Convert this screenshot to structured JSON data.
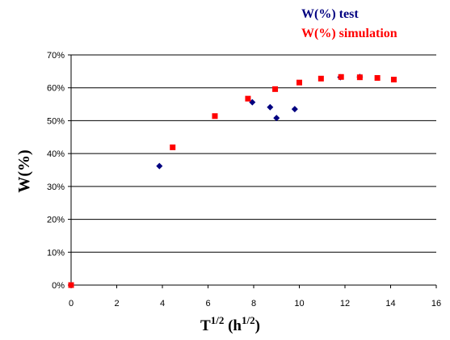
{
  "chart_data": {
    "type": "scatter",
    "xlabel": {
      "base": "T",
      "base_sup": "1/2",
      "unit_open": " (h",
      "unit_sup": "1/2",
      "unit_close": ")"
    },
    "ylabel": "W(%)",
    "xlim": [
      0,
      16
    ],
    "ylim": [
      0,
      70
    ],
    "x_ticks": [
      "0",
      "2",
      "4",
      "6",
      "8",
      "10",
      "12",
      "14",
      "16"
    ],
    "y_ticks": [
      "0%",
      "10%",
      "20%",
      "30%",
      "40%",
      "50%",
      "60%",
      "70%"
    ],
    "grid": {
      "horizontal": true,
      "vertical": false
    },
    "legend_position": "top-right",
    "series": [
      {
        "name": "W(%) test",
        "color": "#000080",
        "marker": "diamond",
        "points": [
          [
            0,
            0
          ],
          [
            3.87,
            36.2
          ],
          [
            7.94,
            55.6
          ],
          [
            8.72,
            54.1
          ],
          [
            9.0,
            50.8
          ],
          [
            9.8,
            53.5
          ],
          [
            11.8,
            63.2
          ],
          [
            12.65,
            63.3
          ]
        ]
      },
      {
        "name": "W(%) simulation",
        "color": "#ff0000",
        "marker": "square",
        "points": [
          [
            0,
            0
          ],
          [
            4.45,
            41.9
          ],
          [
            6.3,
            51.4
          ],
          [
            7.75,
            56.7
          ],
          [
            8.94,
            59.6
          ],
          [
            10.0,
            61.6
          ],
          [
            10.95,
            62.8
          ],
          [
            11.83,
            63.3
          ],
          [
            12.65,
            63.2
          ],
          [
            13.42,
            63.0
          ],
          [
            14.14,
            62.5
          ]
        ]
      }
    ]
  }
}
